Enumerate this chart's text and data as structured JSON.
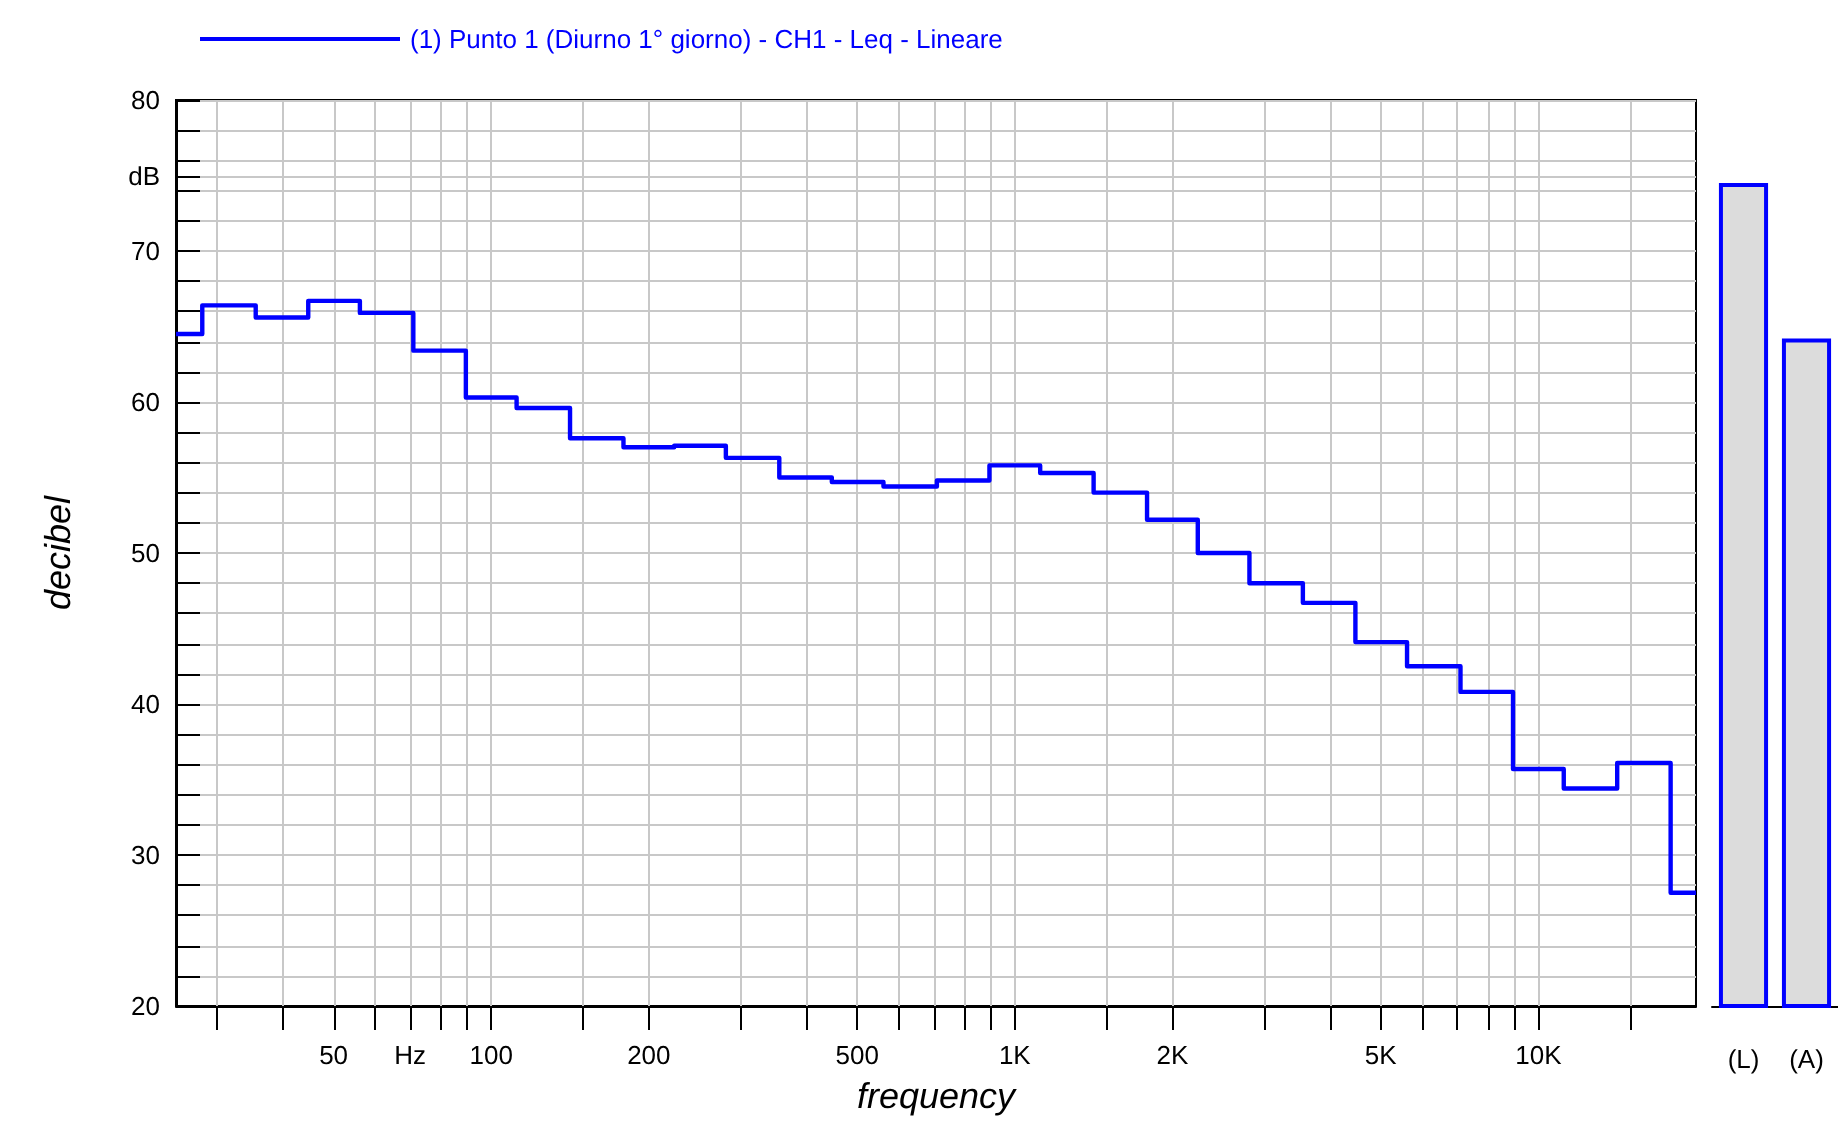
{
  "chart_data": [
    {
      "type": "step",
      "legend": "top left",
      "xlabel": "frequency",
      "ylabel": "decibel",
      "log": "x",
      "grid": true,
      "x": [
        25,
        31.5,
        40,
        50,
        63,
        80,
        100,
        125,
        160,
        200,
        250,
        315,
        400,
        500,
        630,
        800,
        1000,
        1250,
        1600,
        2000,
        2500,
        3150,
        4000,
        5000,
        6300,
        8000,
        10000,
        12500,
        16000,
        20000
      ],
      "series": [
        {
          "name": "(1) Punto 1 (Diurno 1° giorno) - CH1 - Leq - Lineare",
          "color": "#0000ff",
          "values": [
            64.5,
            66.4,
            65.6,
            66.7,
            65.9,
            63.4,
            60.3,
            59.6,
            57.6,
            57.0,
            57.1,
            56.3,
            55.0,
            54.7,
            54.4,
            54.8,
            55.8,
            55.3,
            54.0,
            52.2,
            50.0,
            48.0,
            46.7,
            44.1,
            42.5,
            40.8,
            35.7,
            34.4,
            36.1,
            27.5
          ]
        }
      ],
      "xlim": [
        25,
        20000
      ],
      "xticks": [
        {
          "value": 30,
          "label": null
        },
        {
          "value": 40,
          "label": null
        },
        50,
        {
          "value": 60,
          "label": null
        },
        {
          "value": 70,
          "label": "Hz"
        },
        {
          "value": 80,
          "label": null
        },
        {
          "value": 90,
          "label": null
        },
        100,
        {
          "value": 150,
          "label": null
        },
        200,
        {
          "value": 300,
          "label": null
        },
        {
          "value": 400,
          "label": null
        },
        500,
        {
          "value": 600,
          "label": null
        },
        {
          "value": 700,
          "label": null
        },
        {
          "value": 800,
          "label": null
        },
        {
          "value": 900,
          "label": null
        },
        {
          "value": 1000,
          "label": "1K"
        },
        {
          "value": 1500,
          "label": null
        },
        {
          "value": 2000,
          "label": "2K"
        },
        {
          "value": 3000,
          "label": null
        },
        {
          "value": 4000,
          "label": null
        },
        {
          "value": 5000,
          "label": "5K"
        },
        {
          "value": 6000,
          "label": null
        },
        {
          "value": 7000,
          "label": null
        },
        {
          "value": 8000,
          "label": null
        },
        {
          "value": 9000,
          "label": null
        },
        {
          "value": 10000,
          "label": "10K"
        },
        {
          "value": 15000,
          "label": null
        }
      ],
      "ylim": [
        20,
        80
      ],
      "yticks": [
        20,
        {
          "value": 22,
          "label": null
        },
        {
          "value": 24,
          "label": null
        },
        {
          "value": 26,
          "label": null
        },
        {
          "value": 28,
          "label": null
        },
        30,
        {
          "value": 32,
          "label": null
        },
        {
          "value": 34,
          "label": null
        },
        {
          "value": 36,
          "label": null
        },
        {
          "value": 38,
          "label": null
        },
        40,
        {
          "value": 42,
          "label": null
        },
        {
          "value": 44,
          "label": null
        },
        {
          "value": 46,
          "label": null
        },
        {
          "value": 48,
          "label": null
        },
        50,
        {
          "value": 52,
          "label": null
        },
        {
          "value": 54,
          "label": null
        },
        {
          "value": 56,
          "label": null
        },
        {
          "value": 58,
          "label": null
        },
        60,
        {
          "value": 62,
          "label": null
        },
        {
          "value": 64,
          "label": null
        },
        {
          "value": 66,
          "label": null
        },
        {
          "value": 68,
          "label": null
        },
        70,
        {
          "value": 72,
          "label": null
        },
        {
          "value": 74,
          "label": null
        },
        {
          "value": 75,
          "label": "dB"
        },
        {
          "value": 76,
          "label": null
        },
        {
          "value": 78,
          "label": null
        },
        80
      ]
    },
    {
      "type": "bar",
      "categories": [
        "(L)",
        "(A)"
      ],
      "values": [
        74.5,
        64.2
      ],
      "colors": [
        "#dcdcdc",
        "#dcdcdc"
      ],
      "ylim": [
        20,
        80
      ],
      "tick_labels": "x"
    }
  ]
}
